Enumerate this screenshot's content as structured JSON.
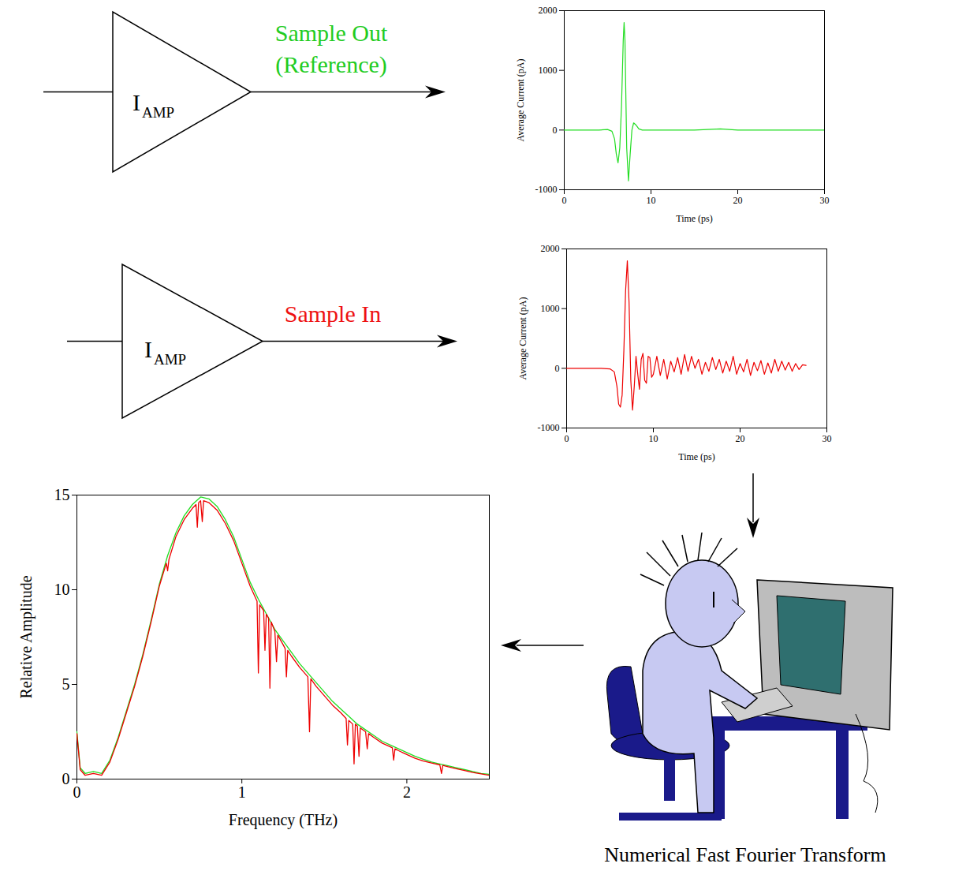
{
  "diagram": {
    "amplifiers": [
      {
        "label": "I",
        "subscript": "AMP",
        "output_lines": [
          "Sample Out",
          "(Reference)"
        ],
        "color": "#22cc22"
      },
      {
        "label": "I",
        "subscript": "AMP",
        "output_lines": [
          "Sample In"
        ],
        "color": "#ee1111"
      }
    ],
    "caption": "Numerical Fast Fourier Transform"
  },
  "chart_data": [
    {
      "type": "line",
      "x_label": "Time (ps)",
      "y_label": "Average Current (pA)",
      "color": "#22dd22",
      "x": [
        0,
        2,
        4,
        5,
        5.5,
        5.8,
        6.0,
        6.2,
        6.4,
        6.6,
        6.8,
        6.9,
        7.0,
        7.1,
        7.2,
        7.4,
        7.6,
        7.8,
        8.0,
        8.3,
        8.6,
        9,
        10,
        12,
        15,
        18,
        20,
        25,
        30
      ],
      "values": [
        0,
        0,
        0,
        10,
        -20,
        -150,
        -400,
        -550,
        -300,
        400,
        1500,
        1800,
        1500,
        600,
        -300,
        -850,
        -400,
        0,
        120,
        80,
        20,
        0,
        0,
        0,
        0,
        20,
        0,
        0,
        0
      ],
      "xlim": [
        0,
        30
      ],
      "xticks": [
        0,
        10,
        20,
        30
      ],
      "ylim": [
        -1000,
        2000
      ],
      "yticks": [
        -1000,
        0,
        1000,
        2000
      ]
    },
    {
      "type": "line",
      "x_label": "Time (ps)",
      "y_label": "Average Current (pA)",
      "color": "#ee0000",
      "x": [
        0,
        2,
        4,
        5,
        5.5,
        5.8,
        6.0,
        6.2,
        6.4,
        6.6,
        6.8,
        7.0,
        7.2,
        7.4,
        7.6,
        7.8,
        8.0,
        8.2,
        8.4,
        8.6,
        8.8,
        9.0,
        9.2,
        9.4,
        9.6,
        9.8,
        10.0,
        10.4,
        10.8,
        11.2,
        11.6,
        12,
        12.4,
        12.8,
        13.2,
        13.6,
        14,
        14.4,
        14.8,
        15.2,
        15.6,
        16,
        16.4,
        16.8,
        17.2,
        17.6,
        18,
        18.4,
        18.8,
        19.2,
        19.6,
        20,
        20.4,
        20.8,
        21.2,
        21.6,
        22,
        22.4,
        22.8,
        23.2,
        23.6,
        24,
        24.4,
        24.8,
        25.2,
        25.6,
        26,
        26.4,
        26.8,
        27.2,
        27.6
      ],
      "values": [
        0,
        0,
        0,
        -10,
        -60,
        -300,
        -600,
        -650,
        -450,
        300,
        1300,
        1800,
        1100,
        -200,
        -700,
        -300,
        200,
        -100,
        -350,
        150,
        250,
        -200,
        -250,
        200,
        180,
        -150,
        -100,
        200,
        -120,
        150,
        -180,
        120,
        -60,
        180,
        -100,
        230,
        -50,
        200,
        0,
        150,
        -100,
        100,
        -50,
        180,
        -20,
        150,
        -80,
        120,
        -50,
        200,
        -100,
        80,
        -60,
        150,
        -120,
        100,
        -40,
        130,
        -100,
        90,
        -80,
        150,
        -50,
        120,
        -30,
        100,
        -50,
        80,
        -20,
        60,
        50
      ],
      "xlim": [
        0,
        30
      ],
      "xticks": [
        0,
        10,
        20,
        30
      ],
      "ylim": [
        -1000,
        2000
      ],
      "yticks": [
        -1000,
        0,
        1000,
        2000
      ]
    },
    {
      "type": "line",
      "x_label": "Frequency (THz)",
      "y_label": "Relative Amplitude",
      "series": [
        {
          "color": "#22dd22",
          "x": [
            0,
            0.02,
            0.05,
            0.1,
            0.15,
            0.2,
            0.25,
            0.3,
            0.35,
            0.4,
            0.45,
            0.5,
            0.55,
            0.6,
            0.65,
            0.7,
            0.75,
            0.8,
            0.85,
            0.9,
            0.95,
            1.0,
            1.05,
            1.1,
            1.15,
            1.2,
            1.25,
            1.3,
            1.35,
            1.4,
            1.45,
            1.5,
            1.55,
            1.6,
            1.65,
            1.7,
            1.75,
            1.8,
            1.85,
            1.9,
            1.95,
            2.0,
            2.05,
            2.1,
            2.15,
            2.2,
            2.25,
            2.3,
            2.35,
            2.4,
            2.45,
            2.5
          ],
          "values": [
            2.5,
            0.6,
            0.3,
            0.4,
            0.3,
            1.0,
            2.2,
            3.6,
            5.0,
            6.6,
            8.4,
            10.3,
            11.8,
            13.0,
            13.9,
            14.5,
            14.9,
            14.8,
            14.4,
            13.7,
            12.8,
            11.6,
            10.4,
            9.5,
            8.7,
            7.9,
            7.3,
            6.7,
            6.1,
            5.6,
            5.1,
            4.6,
            4.1,
            3.7,
            3.3,
            2.9,
            2.6,
            2.3,
            2.0,
            1.8,
            1.6,
            1.4,
            1.2,
            1.05,
            0.9,
            0.8,
            0.7,
            0.6,
            0.5,
            0.4,
            0.3,
            0.25
          ]
        },
        {
          "color": "#ee0000",
          "x": [
            0,
            0.02,
            0.05,
            0.1,
            0.15,
            0.2,
            0.25,
            0.3,
            0.35,
            0.4,
            0.45,
            0.5,
            0.542,
            0.55,
            0.558,
            0.6,
            0.65,
            0.7,
            0.722,
            0.73,
            0.738,
            0.75,
            0.76,
            0.768,
            0.8,
            0.85,
            0.9,
            0.95,
            1.0,
            1.05,
            1.092,
            1.1,
            1.108,
            1.132,
            1.14,
            1.148,
            1.162,
            1.17,
            1.178,
            1.2,
            1.21,
            1.218,
            1.25,
            1.262,
            1.27,
            1.278,
            1.3,
            1.35,
            1.4,
            1.41,
            1.418,
            1.45,
            1.5,
            1.55,
            1.6,
            1.632,
            1.64,
            1.648,
            1.672,
            1.68,
            1.688,
            1.7,
            1.71,
            1.718,
            1.75,
            1.76,
            1.768,
            1.8,
            1.85,
            1.9,
            1.912,
            1.92,
            1.928,
            1.95,
            2.0,
            2.05,
            2.1,
            2.15,
            2.2,
            2.21,
            2.218,
            2.25,
            2.3,
            2.35,
            2.4,
            2.45,
            2.5
          ],
          "values": [
            2.4,
            0.5,
            0.2,
            0.3,
            0.2,
            0.9,
            2.1,
            3.5,
            4.9,
            6.5,
            8.3,
            10.2,
            11.4,
            11.0,
            11.6,
            12.8,
            13.7,
            14.3,
            14.5,
            13.3,
            14.6,
            14.7,
            13.6,
            14.7,
            14.6,
            14.2,
            13.5,
            12.6,
            11.4,
            10.2,
            9.4,
            5.6,
            9.2,
            8.9,
            6.8,
            8.7,
            8.5,
            4.8,
            8.3,
            7.8,
            6.2,
            7.6,
            7.1,
            6.9,
            5.4,
            6.8,
            6.5,
            5.9,
            5.4,
            2.5,
            5.3,
            4.9,
            4.4,
            3.9,
            3.5,
            3.2,
            1.8,
            3.1,
            2.9,
            0.8,
            2.9,
            2.8,
            1.2,
            2.7,
            2.5,
            1.6,
            2.4,
            2.2,
            1.9,
            1.7,
            1.65,
            1.0,
            1.6,
            1.5,
            1.3,
            1.1,
            0.95,
            0.85,
            0.75,
            0.3,
            0.72,
            0.65,
            0.55,
            0.45,
            0.35,
            0.28,
            0.2
          ]
        }
      ],
      "xlim": [
        0,
        2.5
      ],
      "xticks": [
        0,
        1,
        2
      ],
      "ylim": [
        0,
        15
      ],
      "yticks": [
        0,
        5,
        10,
        15
      ]
    }
  ]
}
